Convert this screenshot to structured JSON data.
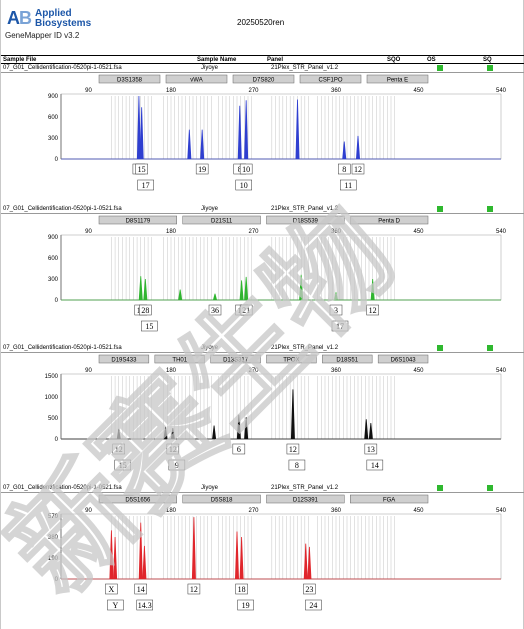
{
  "header": {
    "brand_line1": "Applied",
    "brand_line2": "Biosystems",
    "logo_letters": "AB",
    "software": "GeneMapper ID v3.2",
    "document_title": "20250520ren"
  },
  "columns": [
    "Sample File",
    "Sample Name",
    "Panel",
    "SQO",
    "OS",
    "SQ"
  ],
  "colors": {
    "blue": "#2f3fd0",
    "green": "#2fb52f",
    "black": "#111111",
    "red": "#e0262c",
    "status_green": "#2eb82e",
    "bin": "#c4c4c4",
    "marker_fill": "#cfcfcf"
  },
  "panels": [
    {
      "sample_file": "07_G01_Cellidentification-0520pi-1-0521.fsa",
      "sample_name": "Jiyoye",
      "panel": "21Plex_STR_Panel_v1.2",
      "color": "blue",
      "ymax": 900,
      "y_ticks": [
        "900",
        "600",
        "300",
        "0"
      ],
      "x_ticks": [
        "90",
        "180",
        "270",
        "360",
        "450",
        "540"
      ],
      "markers": [
        "D3S1358",
        "vWA",
        "D7S820",
        "CSF1PO",
        "Penta E"
      ],
      "peaks": [
        [
          145,
          900
        ],
        [
          148,
          740
        ],
        [
          200,
          420
        ],
        [
          214,
          420
        ],
        [
          255,
          760
        ],
        [
          262,
          840
        ],
        [
          318,
          850
        ],
        [
          369,
          250
        ],
        [
          384,
          330
        ]
      ],
      "alleles_upper": [
        "16",
        "15",
        "19",
        "8",
        "10",
        "8",
        "12"
      ],
      "alleles_lower": [
        "17",
        "10",
        "11"
      ]
    },
    {
      "sample_file": "07_G01_Cellidentification-0520pi-1-0521.fsa",
      "sample_name": "Jiyoye",
      "panel": "21Plex_STR_Panel_v1.2",
      "color": "green",
      "ymax": 900,
      "y_ticks": [
        "900",
        "600",
        "300",
        "0"
      ],
      "x_ticks": [
        "90",
        "180",
        "270",
        "360",
        "450",
        "540"
      ],
      "markers": [
        "D8S1179",
        "D21S11",
        "D18S539",
        "Penta D"
      ],
      "peaks": [
        [
          147,
          340
        ],
        [
          152,
          300
        ],
        [
          190,
          150
        ],
        [
          228,
          90
        ],
        [
          257,
          280
        ],
        [
          262,
          330
        ],
        [
          322,
          360
        ],
        [
          360,
          110
        ],
        [
          400,
          300
        ]
      ],
      "alleles_upper": [
        "14",
        "28",
        "36",
        "16",
        "21",
        "3",
        "12"
      ],
      "alleles_lower": [
        "15",
        "17"
      ]
    },
    {
      "sample_file": "07_G01_Cellidentification-0520pi-1-0521.fsa",
      "sample_name": "Jiyoye",
      "panel": "21Plex_STR_Panel_v1.2",
      "color": "black",
      "ymax": 1500,
      "y_ticks": [
        "1500",
        "1000",
        "500",
        "0"
      ],
      "x_ticks": [
        "90",
        "180",
        "270",
        "360",
        "450",
        "540"
      ],
      "markers": [
        "D19S433",
        "TH01",
        "D13S317",
        "TPOX",
        "D18S51",
        "D6S1043"
      ],
      "peaks": [
        [
          123,
          240
        ],
        [
          174,
          290
        ],
        [
          182,
          260
        ],
        [
          227,
          320
        ],
        [
          254,
          580
        ],
        [
          262,
          520
        ],
        [
          313,
          1180
        ],
        [
          393,
          470
        ],
        [
          398,
          380
        ]
      ],
      "alleles_upper": [
        "12",
        "12",
        "6",
        "12",
        "13"
      ],
      "alleles_lower": [
        "15",
        "9",
        "8",
        "14"
      ]
    },
    {
      "sample_file": "07_G01_Cellidentification-0520pi-1-0521.fsa",
      "sample_name": "Jiyoye",
      "panel": "21Plex_STR_Panel_v1.2",
      "color": "red",
      "ymax": 570,
      "y_ticks": [
        "570",
        "380",
        "190",
        "0"
      ],
      "x_ticks": [
        "90",
        "180",
        "270",
        "360",
        "450",
        "540"
      ],
      "markers": [
        "D5S1656",
        "D5S818",
        "D12S391",
        "FGA"
      ],
      "peaks": [
        [
          115,
          440
        ],
        [
          119,
          380
        ],
        [
          147,
          510
        ],
        [
          151,
          300
        ],
        [
          205,
          560
        ],
        [
          252,
          430
        ],
        [
          257,
          380
        ],
        [
          327,
          320
        ],
        [
          331,
          290
        ]
      ],
      "alleles_upper": [
        "X",
        "14",
        "12",
        "18",
        "23"
      ],
      "alleles_lower": [
        "Y",
        "14.3",
        "19",
        "24"
      ]
    }
  ],
  "watermark": "新赛生物"
}
